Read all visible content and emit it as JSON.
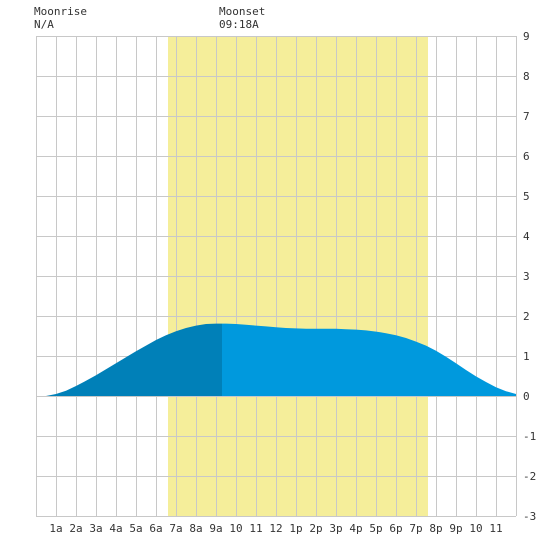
{
  "header": {
    "moonrise_label": "Moonrise",
    "moonrise_value": "N/A",
    "moonset_label": "Moonset",
    "moonset_value": "09:18A"
  },
  "colors": {
    "background": "#ffffff",
    "grid": "#c8c8c8",
    "daylight": "#f5ee9a",
    "tide_dark": "#0080b8",
    "tide_light": "#0099dd",
    "text": "#333333"
  },
  "chart_data": {
    "type": "area",
    "title": "",
    "xlabel": "",
    "ylabel": "",
    "x_unit": "hour of day",
    "xlim": [
      0,
      24
    ],
    "ylim": [
      -3,
      9
    ],
    "grid": true,
    "y_ticks": [
      -3,
      -2,
      -1,
      0,
      1,
      2,
      3,
      4,
      5,
      6,
      7,
      8,
      9
    ],
    "x_ticks": [
      {
        "hour": 1,
        "label": "1a"
      },
      {
        "hour": 2,
        "label": "2a"
      },
      {
        "hour": 3,
        "label": "3a"
      },
      {
        "hour": 4,
        "label": "4a"
      },
      {
        "hour": 5,
        "label": "5a"
      },
      {
        "hour": 6,
        "label": "6a"
      },
      {
        "hour": 7,
        "label": "7a"
      },
      {
        "hour": 8,
        "label": "8a"
      },
      {
        "hour": 9,
        "label": "9a"
      },
      {
        "hour": 10,
        "label": "10"
      },
      {
        "hour": 11,
        "label": "11"
      },
      {
        "hour": 12,
        "label": "12"
      },
      {
        "hour": 13,
        "label": "1p"
      },
      {
        "hour": 14,
        "label": "2p"
      },
      {
        "hour": 15,
        "label": "3p"
      },
      {
        "hour": 16,
        "label": "4p"
      },
      {
        "hour": 17,
        "label": "5p"
      },
      {
        "hour": 18,
        "label": "6p"
      },
      {
        "hour": 19,
        "label": "7p"
      },
      {
        "hour": 20,
        "label": "8p"
      },
      {
        "hour": 21,
        "label": "9p"
      },
      {
        "hour": 22,
        "label": "10"
      },
      {
        "hour": 23,
        "label": "11"
      }
    ],
    "daylight": {
      "start": 6.6,
      "end": 19.6
    },
    "moon_above_until": 9.3,
    "series": [
      {
        "x": [
          0,
          0.5,
          1,
          1.5,
          2,
          2.5,
          3,
          3.5,
          4,
          4.5,
          5,
          5.5,
          6,
          6.5,
          7,
          7.5,
          8,
          8.5,
          9,
          9.5,
          10,
          10.5,
          11,
          11.5,
          12,
          12.5,
          13,
          13.5,
          14,
          14.5,
          15,
          15.5,
          16,
          16.5,
          17,
          17.5,
          18,
          18.5,
          19,
          19.5,
          20,
          20.5,
          21,
          21.5,
          22,
          22.5,
          23,
          23.5,
          24
        ],
        "values": [
          0.0,
          0.0,
          0.05,
          0.13,
          0.25,
          0.38,
          0.52,
          0.67,
          0.82,
          0.97,
          1.12,
          1.26,
          1.4,
          1.52,
          1.62,
          1.7,
          1.76,
          1.8,
          1.81,
          1.81,
          1.8,
          1.78,
          1.76,
          1.74,
          1.72,
          1.7,
          1.69,
          1.68,
          1.68,
          1.68,
          1.68,
          1.67,
          1.66,
          1.64,
          1.61,
          1.57,
          1.52,
          1.45,
          1.36,
          1.26,
          1.13,
          0.98,
          0.82,
          0.65,
          0.49,
          0.35,
          0.22,
          0.12,
          0.05
        ]
      }
    ]
  }
}
